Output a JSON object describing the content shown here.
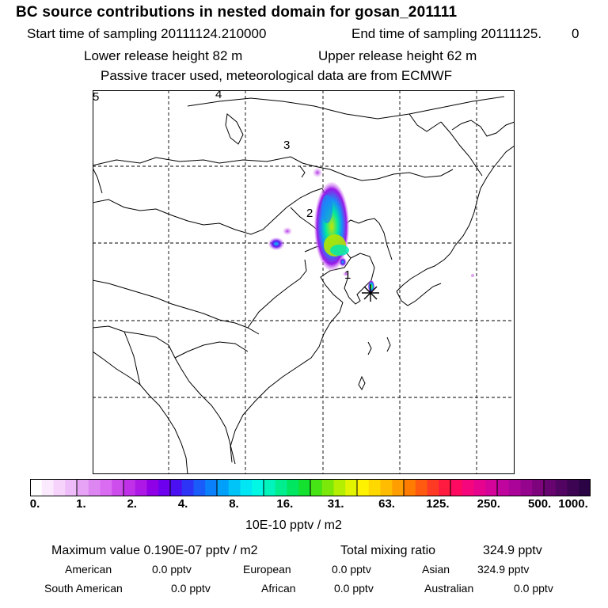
{
  "header": {
    "title": "BC  source contributions in nested domain for gosan_201111",
    "start_label": "Start time of sampling 20111124.210000",
    "end_label": "End time of sampling 20111125.",
    "end_value": "0",
    "lower_release": "Lower release height   82 m",
    "upper_release": "Upper release height   62 m",
    "tracer_note": "Passive tracer used, meteorological data are from ECMWF"
  },
  "map": {
    "labels": [
      "5",
      "4",
      "3",
      "2",
      "1"
    ],
    "station_symbol": "*"
  },
  "colorbar": {
    "ticks": [
      "0.",
      "1.",
      "2.",
      "4.",
      "8.",
      "16.",
      "31.",
      "63.",
      "125.",
      "250.",
      "500.",
      "1000."
    ],
    "colors": [
      "#ffffff",
      "#fbeafd",
      "#f5d3fb",
      "#eebcf8",
      "#e7a3f5",
      "#dd86f2",
      "#d96cf0",
      "#cc4cec",
      "#bf30e8",
      "#ae18e6",
      "#9000e6",
      "#6d00ee",
      "#4a10f2",
      "#2d34f6",
      "#1a5cfa",
      "#0a80fa",
      "#00a0fa",
      "#00c4f8",
      "#00e6f2",
      "#00f8e4",
      "#00f4bc",
      "#00ee8e",
      "#00e660",
      "#14e030",
      "#46e414",
      "#7ce80a",
      "#b4ee00",
      "#e2f400",
      "#fff200",
      "#ffd800",
      "#ffbc00",
      "#ff9e00",
      "#ff7c00",
      "#ff5a10",
      "#ff3a24",
      "#ff1a40",
      "#ff0a60",
      "#f5067c",
      "#e6048e",
      "#d4049a",
      "#c0049e",
      "#aa0498",
      "#94048c",
      "#7e047e",
      "#680470",
      "#520462",
      "#3c0452",
      "#2a0444"
    ],
    "unit": "10E-10 pptv / m2"
  },
  "summary": {
    "max_label": "Maximum value  0.190E-07 pptv / m2",
    "total_label": "Total mixing ratio",
    "total_value": "324.9 pptv",
    "american_label": "American",
    "american_value": "0.0 pptv",
    "european_label": "European",
    "european_value": "0.0 pptv",
    "asian_label": "Asian",
    "asian_value": "324.9 pptv",
    "south_american_label": "South American",
    "south_american_value": "0.0 pptv",
    "african_label": "African",
    "african_value": "0.0 pptv",
    "australian_label": "Australian",
    "australian_value": "0.0 pptv"
  }
}
